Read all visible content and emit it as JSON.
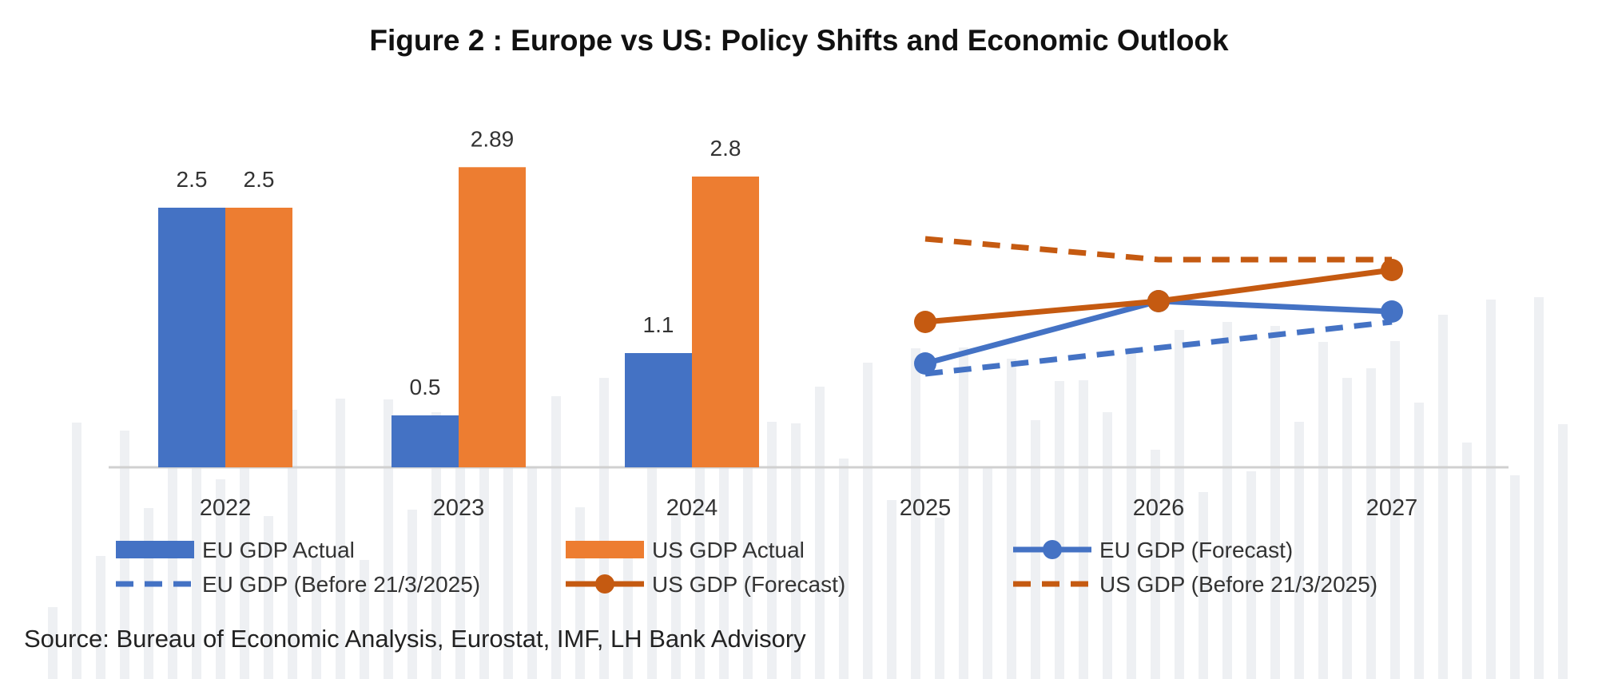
{
  "figure": {
    "title": "Figure 2 : Europe vs US: Policy Shifts and Economic Outlook",
    "source": "Source: Bureau of Economic Analysis, Eurostat, IMF, LH Bank Advisory"
  },
  "colors": {
    "eu": "#4472c4",
    "us_bar": "#ed7d31",
    "us_line": "#c55a11",
    "axis": "#d0d0d0"
  },
  "chart_data": {
    "type": "bar",
    "title": "Figure 2 : Europe vs US: Policy Shifts and Economic Outlook",
    "xlabel": "",
    "ylabel": "",
    "categories": [
      "2022",
      "2023",
      "2024",
      "2025",
      "2026",
      "2027"
    ],
    "ylim": [
      0,
      3.0
    ],
    "grid": false,
    "legend_position": "bottom",
    "series": [
      {
        "name": "EU GDP Actual",
        "type": "bar",
        "color": "#4472c4",
        "values": [
          2.5,
          0.5,
          1.1,
          null,
          null,
          null
        ],
        "labels": [
          "2.5",
          "0.5",
          "1.1"
        ]
      },
      {
        "name": "US GDP Actual",
        "type": "bar",
        "color": "#ed7d31",
        "values": [
          2.5,
          2.89,
          2.8,
          null,
          null,
          null
        ],
        "labels": [
          "2.5",
          "2.89",
          "2.8"
        ]
      },
      {
        "name": "EU GDP (Forecast)",
        "type": "line",
        "style": "solid",
        "marker": true,
        "color": "#4472c4",
        "values": [
          null,
          null,
          null,
          1.0,
          1.6,
          1.5
        ]
      },
      {
        "name": "EU GDP (Before 21/3/2025)",
        "type": "line",
        "style": "dashed",
        "marker": false,
        "color": "#4472c4",
        "values": [
          null,
          null,
          null,
          0.9,
          null,
          1.4
        ]
      },
      {
        "name": "US GDP (Forecast)",
        "type": "line",
        "style": "solid",
        "marker": true,
        "color": "#c55a11",
        "values": [
          null,
          null,
          null,
          1.4,
          1.6,
          1.9
        ]
      },
      {
        "name": "US GDP  (Before 21/3/2025)",
        "type": "line",
        "style": "dashed",
        "marker": false,
        "color": "#c55a11",
        "values": [
          null,
          null,
          null,
          2.2,
          2.0,
          2.0
        ]
      }
    ]
  }
}
